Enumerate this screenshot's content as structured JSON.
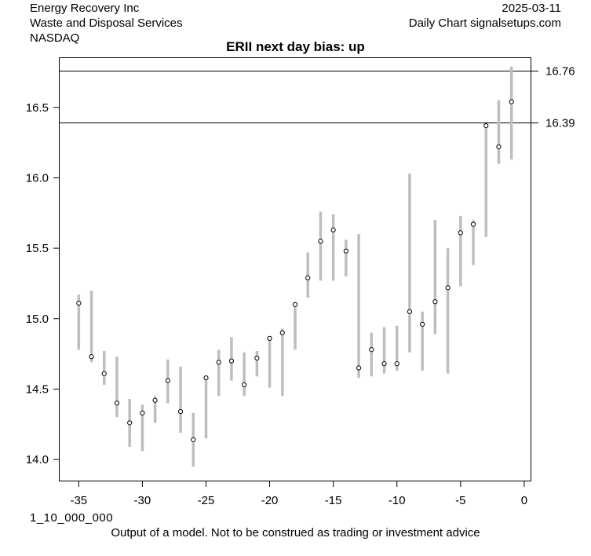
{
  "header": {
    "company": "Energy Recovery Inc",
    "industry": "Waste and Disposal Services",
    "exchange": "NASDAQ",
    "date": "2025-03-11",
    "source": "Daily Chart signalsetups.com"
  },
  "footer": {
    "code": "1_10_000_000",
    "disclaimer": "Output of a model. Not to be construed as trading or investment advice"
  },
  "colors": {
    "range_bar": "#bebebe",
    "level_line": "#000000"
  },
  "chart_data": {
    "type": "range",
    "title": "ERII next day bias: up",
    "xlim": [
      -36.5,
      0.5
    ],
    "ylim": [
      13.85,
      16.85
    ],
    "x_ticks": [
      -35,
      -30,
      -25,
      -20,
      -15,
      -10,
      -5,
      0
    ],
    "y_ticks": [
      14.0,
      14.5,
      15.0,
      15.5,
      16.0,
      16.5
    ],
    "levels": [
      16.76,
      16.39
    ],
    "points": [
      {
        "x": -35,
        "low": 14.78,
        "high": 15.17,
        "close": 15.11
      },
      {
        "x": -34,
        "low": 14.69,
        "high": 15.2,
        "close": 14.73
      },
      {
        "x": -33,
        "low": 14.53,
        "high": 14.77,
        "close": 14.61
      },
      {
        "x": -32,
        "low": 14.3,
        "high": 14.73,
        "close": 14.4
      },
      {
        "x": -31,
        "low": 14.09,
        "high": 14.43,
        "close": 14.26
      },
      {
        "x": -30,
        "low": 14.06,
        "high": 14.39,
        "close": 14.33
      },
      {
        "x": -29,
        "low": 14.26,
        "high": 14.45,
        "close": 14.42
      },
      {
        "x": -28,
        "low": 14.4,
        "high": 14.71,
        "close": 14.56
      },
      {
        "x": -27,
        "low": 14.19,
        "high": 14.66,
        "close": 14.34
      },
      {
        "x": -26,
        "low": 13.95,
        "high": 14.33,
        "close": 14.14
      },
      {
        "x": -25,
        "low": 14.15,
        "high": 14.59,
        "close": 14.58
      },
      {
        "x": -24,
        "low": 14.45,
        "high": 14.78,
        "close": 14.69
      },
      {
        "x": -23,
        "low": 14.56,
        "high": 14.87,
        "close": 14.7
      },
      {
        "x": -22,
        "low": 14.45,
        "high": 14.76,
        "close": 14.53
      },
      {
        "x": -21,
        "low": 14.59,
        "high": 14.77,
        "close": 14.72
      },
      {
        "x": -20,
        "low": 14.51,
        "high": 14.86,
        "close": 14.86
      },
      {
        "x": -19,
        "low": 14.45,
        "high": 14.93,
        "close": 14.9
      },
      {
        "x": -18,
        "low": 14.78,
        "high": 15.12,
        "close": 15.1
      },
      {
        "x": -17,
        "low": 15.15,
        "high": 15.47,
        "close": 15.29
      },
      {
        "x": -16,
        "low": 15.27,
        "high": 15.76,
        "close": 15.55
      },
      {
        "x": -15,
        "low": 15.27,
        "high": 15.74,
        "close": 15.63
      },
      {
        "x": -14,
        "low": 15.3,
        "high": 15.56,
        "close": 15.48
      },
      {
        "x": -13,
        "low": 14.58,
        "high": 15.6,
        "close": 14.65
      },
      {
        "x": -12,
        "low": 14.59,
        "high": 14.9,
        "close": 14.78
      },
      {
        "x": -11,
        "low": 14.61,
        "high": 14.94,
        "close": 14.68
      },
      {
        "x": -10,
        "low": 14.63,
        "high": 14.95,
        "close": 14.68
      },
      {
        "x": -9,
        "low": 14.76,
        "high": 16.03,
        "close": 15.05
      },
      {
        "x": -8,
        "low": 14.63,
        "high": 15.05,
        "close": 14.96
      },
      {
        "x": -7,
        "low": 14.89,
        "high": 15.7,
        "close": 15.12
      },
      {
        "x": -6,
        "low": 14.61,
        "high": 15.5,
        "close": 15.22
      },
      {
        "x": -5,
        "low": 15.23,
        "high": 15.73,
        "close": 15.61
      },
      {
        "x": -4,
        "low": 15.38,
        "high": 15.7,
        "close": 15.67
      },
      {
        "x": -3,
        "low": 15.58,
        "high": 16.38,
        "close": 16.37
      },
      {
        "x": -2,
        "low": 16.1,
        "high": 16.55,
        "close": 16.22
      },
      {
        "x": -1,
        "low": 16.13,
        "high": 16.79,
        "close": 16.54
      }
    ]
  }
}
